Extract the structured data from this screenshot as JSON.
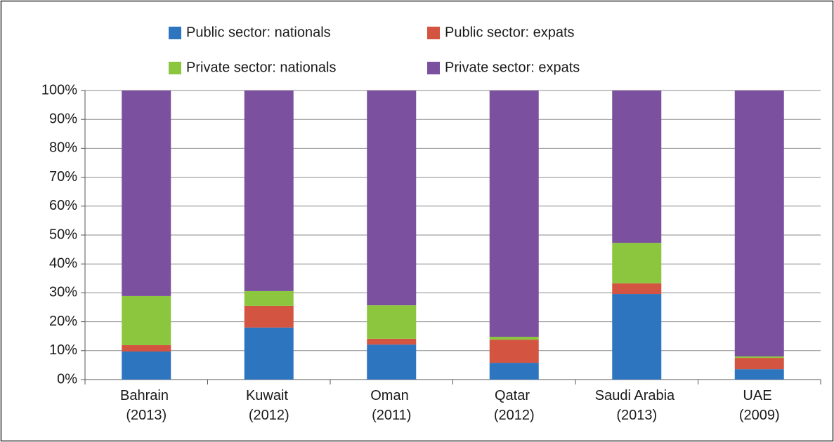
{
  "chart_data": {
    "type": "stacked_bar",
    "categories": [
      "Bahrain (2013)",
      "Kuwait (2012)",
      "Oman (2011)",
      "Qatar (2012)",
      "Saudi Arabia (2013)",
      "UAE (2009)"
    ],
    "series": [
      {
        "name": "Public sector: nationals",
        "color": "#2e75c0",
        "values": [
          9.7,
          18.0,
          12.1,
          5.8,
          29.6,
          3.6
        ]
      },
      {
        "name": "Public sector: expats",
        "color": "#d35440",
        "values": [
          2.2,
          7.5,
          2.0,
          8.0,
          3.7,
          3.9
        ]
      },
      {
        "name": "Private sector: nationals",
        "color": "#8cc63f",
        "values": [
          17.0,
          5.1,
          11.6,
          1.0,
          14.0,
          0.5
        ]
      },
      {
        "name": "Private sector: expats",
        "color": "#7b519f",
        "values": [
          71.1,
          69.4,
          74.3,
          85.2,
          52.7,
          92.0
        ]
      }
    ],
    "ylim": [
      0,
      100
    ],
    "yticks": [
      {
        "value": 0,
        "label": "0%"
      },
      {
        "value": 10,
        "label": "10%"
      },
      {
        "value": 20,
        "label": "20%"
      },
      {
        "value": 30,
        "label": "30%"
      },
      {
        "value": 40,
        "label": "40%"
      },
      {
        "value": 50,
        "label": "50%"
      },
      {
        "value": 60,
        "label": "60%"
      },
      {
        "value": 70,
        "label": "70%"
      },
      {
        "value": 80,
        "label": "80%"
      },
      {
        "value": 90,
        "label": "90%"
      },
      {
        "value": 100,
        "label": "100%"
      }
    ],
    "grid": true,
    "legend": "top"
  }
}
